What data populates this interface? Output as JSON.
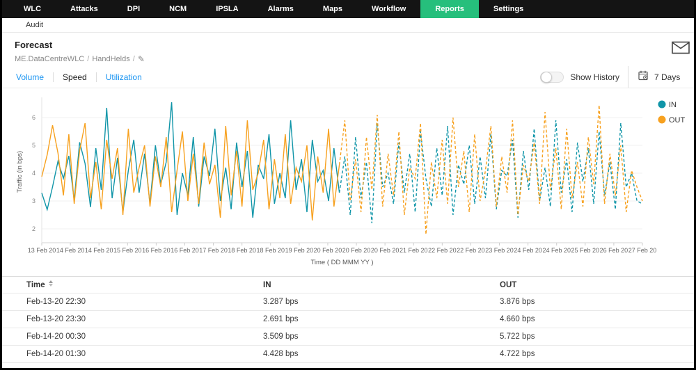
{
  "nav": {
    "items": [
      "WLC",
      "Attacks",
      "DPI",
      "NCM",
      "IPSLA",
      "Alarms",
      "Maps",
      "Workflow",
      "Reports",
      "Settings"
    ],
    "active_item": "Reports"
  },
  "subnav": {
    "audit_label": "Audit"
  },
  "header": {
    "title": "Forecast",
    "breadcrumb": {
      "device": "ME.DataCentreWLC",
      "group": "HandHelds"
    },
    "icons": {
      "mail": "mail-icon",
      "edit": "✎"
    }
  },
  "toolbar": {
    "tabs": [
      {
        "label": "Volume",
        "active": false
      },
      {
        "label": "Speed",
        "active": true
      },
      {
        "label": "Utilization",
        "active": false
      }
    ],
    "show_history_label": "Show History",
    "show_history_on": false,
    "period_label": "7 Days",
    "icons": {
      "calendar": "calendar-icon"
    }
  },
  "colors": {
    "nav_active_green": "#26bf7c",
    "tab_link_blue": "#1a94f1",
    "series_in": "#1095a8",
    "series_out": "#f7a11f"
  },
  "chart_data": {
    "type": "line",
    "title": "",
    "xlabel": "Time ( DD MMM YY )",
    "ylabel": "Traffic (in bps)",
    "ylim": [
      1.5,
      6.6
    ],
    "yticks": [
      2,
      3,
      4,
      5,
      6
    ],
    "grid": true,
    "legend_position": "top-right",
    "forecast_style": "dashed",
    "history_end_index": 55,
    "x_tick_labels": [
      "13 Feb 20",
      "14 Feb 20",
      "14 Feb 20",
      "15 Feb 20",
      "16 Feb 20",
      "16 Feb 20",
      "17 Feb 20",
      "18 Feb 20",
      "18 Feb 20",
      "19 Feb 20",
      "20 Feb 20",
      "20 Feb 20",
      "20 Feb 20",
      "21 Feb 20",
      "22 Feb 20",
      "22 Feb 20",
      "23 Feb 20",
      "24 Feb 20",
      "24 Feb 20",
      "25 Feb 20",
      "26 Feb 20",
      "27 Feb 20"
    ],
    "series": [
      {
        "name": "IN",
        "color": "#1095a8",
        "values": [
          3.287,
          2.691,
          3.509,
          4.428,
          3.81,
          4.62,
          3.02,
          5.11,
          4.35,
          2.78,
          4.9,
          3.4,
          6.35,
          3.1,
          4.55,
          2.6,
          4.1,
          5.2,
          3.3,
          4.7,
          2.9,
          5.0,
          3.6,
          4.4,
          6.55,
          2.5,
          4.0,
          3.2,
          5.3,
          2.8,
          4.6,
          3.9,
          5.6,
          3.0,
          4.2,
          2.7,
          5.1,
          3.5,
          4.8,
          2.4,
          4.3,
          3.8,
          5.4,
          2.9,
          4.0,
          3.1,
          5.9,
          3.4,
          4.5,
          2.6,
          5.2,
          3.7,
          4.1,
          3.0,
          4.9,
          3.3,
          4.6,
          2.5,
          5.3,
          3.1,
          4.4,
          2.2,
          5.8,
          3.5,
          4.0,
          2.9,
          5.1,
          3.3,
          4.7,
          2.6,
          5.5,
          3.8,
          2.8,
          4.9,
          3.2,
          5.7,
          2.5,
          4.3,
          3.6,
          5.0,
          2.9,
          4.6,
          3.1,
          5.4,
          2.7,
          4.1,
          3.9,
          5.2,
          2.4,
          4.8,
          3.4,
          5.6,
          3.0,
          4.2,
          2.8,
          5.9,
          3.3,
          4.5,
          2.6,
          5.1,
          3.7,
          4.9,
          2.9,
          5.5,
          3.2,
          4.4,
          2.7,
          5.8,
          3.5,
          4.0,
          3.0,
          2.9
        ]
      },
      {
        "name": "OUT",
        "color": "#f7a11f",
        "values": [
          3.876,
          4.66,
          5.722,
          4.722,
          3.2,
          5.4,
          2.9,
          4.8,
          5.8,
          3.1,
          4.4,
          2.7,
          5.2,
          3.8,
          4.9,
          2.5,
          5.6,
          3.3,
          4.2,
          5.0,
          2.8,
          4.6,
          3.5,
          5.3,
          2.6,
          4.1,
          5.5,
          3.0,
          4.7,
          2.9,
          5.1,
          3.6,
          4.3,
          2.4,
          5.7,
          3.2,
          4.8,
          2.8,
          5.9,
          3.4,
          4.0,
          5.2,
          2.7,
          4.5,
          3.1,
          5.4,
          2.9,
          4.2,
          3.7,
          5.0,
          2.3,
          4.6,
          3.3,
          5.6,
          2.8,
          4.3,
          5.9,
          3.0,
          4.5,
          2.6,
          5.3,
          3.4,
          6.1,
          2.8,
          4.7,
          3.2,
          5.5,
          2.5,
          4.2,
          3.8,
          5.8,
          1.8,
          4.4,
          3.1,
          5.2,
          2.9,
          6.0,
          3.5,
          4.8,
          2.6,
          5.4,
          3.0,
          4.1,
          5.7,
          2.8,
          4.6,
          3.3,
          5.9,
          2.5,
          4.3,
          3.7,
          5.1,
          2.9,
          6.2,
          3.4,
          4.9,
          2.7,
          5.6,
          3.1,
          4.4,
          2.8,
          5.3,
          3.6,
          6.45,
          2.9,
          4.7,
          3.2,
          5.0,
          2.6,
          4.1,
          3.5,
          3.0
        ]
      }
    ]
  },
  "table": {
    "columns": [
      "Time",
      "IN",
      "OUT"
    ],
    "rows": [
      [
        "Feb-13-20 22:30",
        "3.287 bps",
        "3.876 bps"
      ],
      [
        "Feb-13-20 23:30",
        "2.691 bps",
        "4.660 bps"
      ],
      [
        "Feb-14-20 00:30",
        "3.509 bps",
        "5.722 bps"
      ],
      [
        "Feb-14-20 01:30",
        "4.428 bps",
        "4.722 bps"
      ]
    ]
  }
}
